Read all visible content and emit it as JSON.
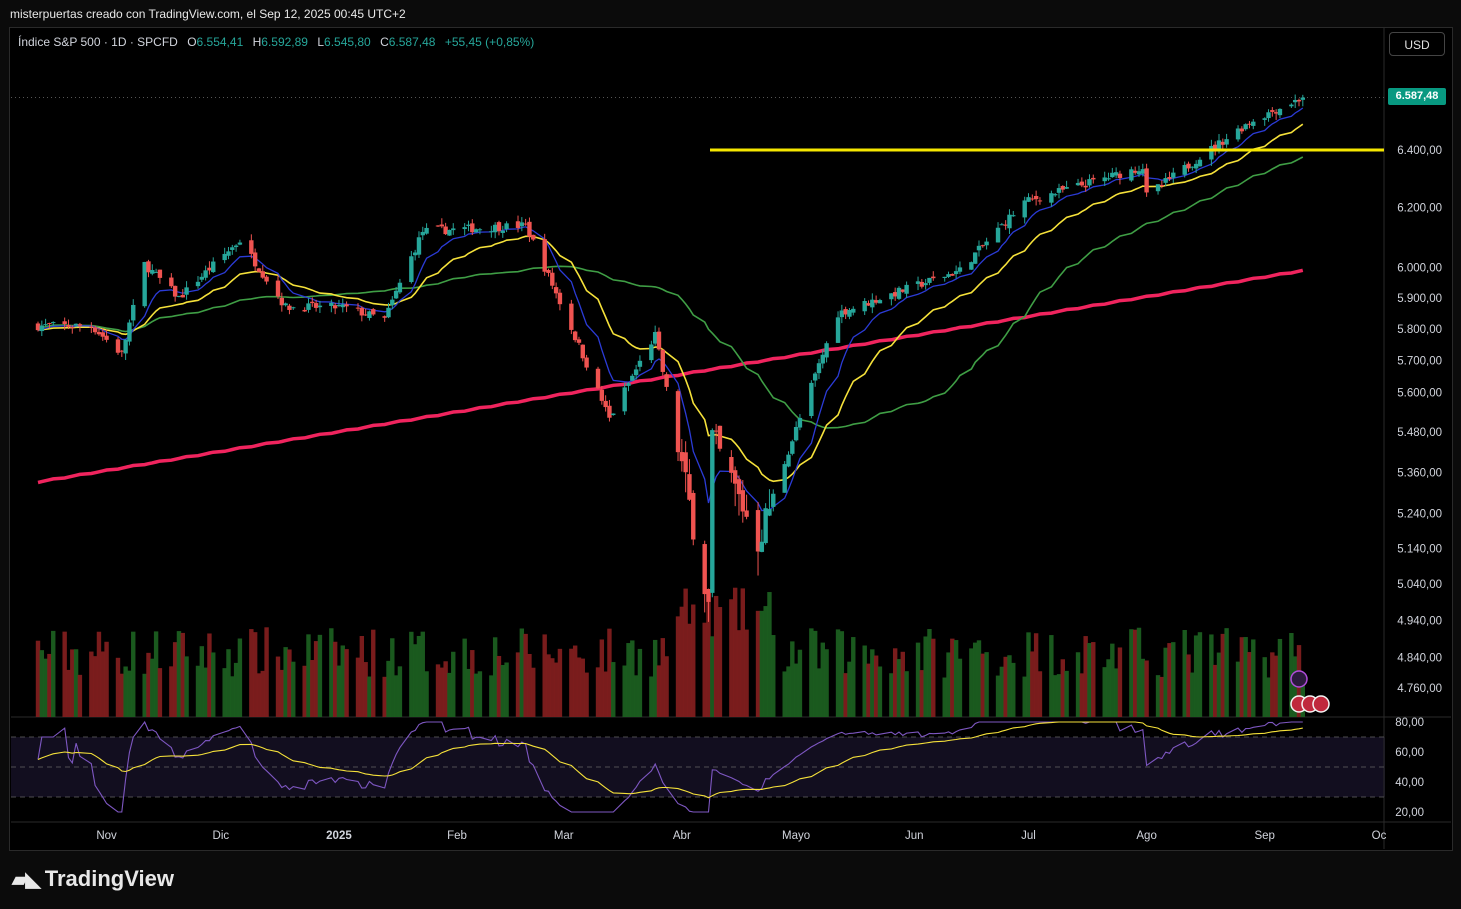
{
  "header": {
    "author_line": "misterpuertas creado con TradingView.com, el Sep 12, 2025 00:45 UTC+2"
  },
  "legend": {
    "symbol": "Índice S&P 500 · 1D · SPCFD",
    "open_label": "O",
    "open": "6.554,41",
    "high_label": "H",
    "high": "6.592,89",
    "low_label": "L",
    "low": "6.545,80",
    "close_label": "C",
    "close": "6.587,48",
    "change": "+55,45 (+0,85%)"
  },
  "currency_button": "USD",
  "last_price_tag": "6.587,48",
  "brand": "TradingView",
  "colors": {
    "up": "#26a69a",
    "down": "#ef5350",
    "ema_fast": "#2b3bd6",
    "ema_mid": "#f5e13a",
    "sma_50": "#3f9e45",
    "sma_200": "#f0245e",
    "hline": "#f5e600",
    "rsi": "#7e57c2",
    "rsi_ma": "#f5e13a"
  },
  "chart_data": [
    {
      "type": "candlestick",
      "title": "Índice S&P 500 · 1D · SPCFD",
      "x_ticks": [
        "Nov",
        "Dic",
        "2025",
        "Feb",
        "Mar",
        "Abr",
        "Mayo",
        "Jun",
        "Jul",
        "Ago",
        "Sep",
        "Oc"
      ],
      "y_ticks": [
        "6.400,00",
        "6.200,00",
        "6.000,00",
        "5.900,00",
        "5.800,00",
        "5.700,00",
        "5.600,00",
        "5.480,00",
        "5.360,00",
        "5.240,00",
        "5.140,00",
        "5.040,00",
        "4.940,00",
        "4.840,00",
        "4.760,00"
      ],
      "y_tick_values": [
        6400,
        6200,
        6000,
        5900,
        5800,
        5700,
        5600,
        5480,
        5360,
        5240,
        5140,
        5040,
        4940,
        4840,
        4760
      ],
      "scale": "log",
      "horizontal_level": 6400,
      "last_close": 6587.48,
      "keypoints": [
        {
          "date": "2024-10-28",
          "close": 5810
        },
        {
          "date": "2024-11-05",
          "close": 5720
        },
        {
          "date": "2024-11-11",
          "close": 6010
        },
        {
          "date": "2024-11-20",
          "close": 5900
        },
        {
          "date": "2024-12-06",
          "close": 6090
        },
        {
          "date": "2024-12-18",
          "close": 5870
        },
        {
          "date": "2025-01-02",
          "close": 5870
        },
        {
          "date": "2025-01-13",
          "close": 5830
        },
        {
          "date": "2025-01-23",
          "close": 6120
        },
        {
          "date": "2025-02-19",
          "close": 6140
        },
        {
          "date": "2025-03-13",
          "close": 5520
        },
        {
          "date": "2025-03-25",
          "close": 5780
        },
        {
          "date": "2025-04-08",
          "close": 4980
        },
        {
          "date": "2025-04-09",
          "close": 5460
        },
        {
          "date": "2025-04-21",
          "close": 5160
        },
        {
          "date": "2025-05-12",
          "close": 5850
        },
        {
          "date": "2025-06-13",
          "close": 5990
        },
        {
          "date": "2025-06-30",
          "close": 6220
        },
        {
          "date": "2025-07-31",
          "close": 6340
        },
        {
          "date": "2025-08-01",
          "close": 6240
        },
        {
          "date": "2025-08-28",
          "close": 6500
        },
        {
          "date": "2025-09-11",
          "close": 6587.48
        }
      ],
      "moving_averages": [
        "EMA fast (blue)",
        "EMA (yellow)",
        "SMA 50 (green)",
        "SMA 200 (red)"
      ]
    },
    {
      "type": "line",
      "y_ticks": [
        "80,00",
        "60,00",
        "40,00",
        "20,00"
      ],
      "y_tick_values": [
        80,
        60,
        40,
        20
      ],
      "bands": [
        70,
        50,
        30
      ]
    }
  ]
}
